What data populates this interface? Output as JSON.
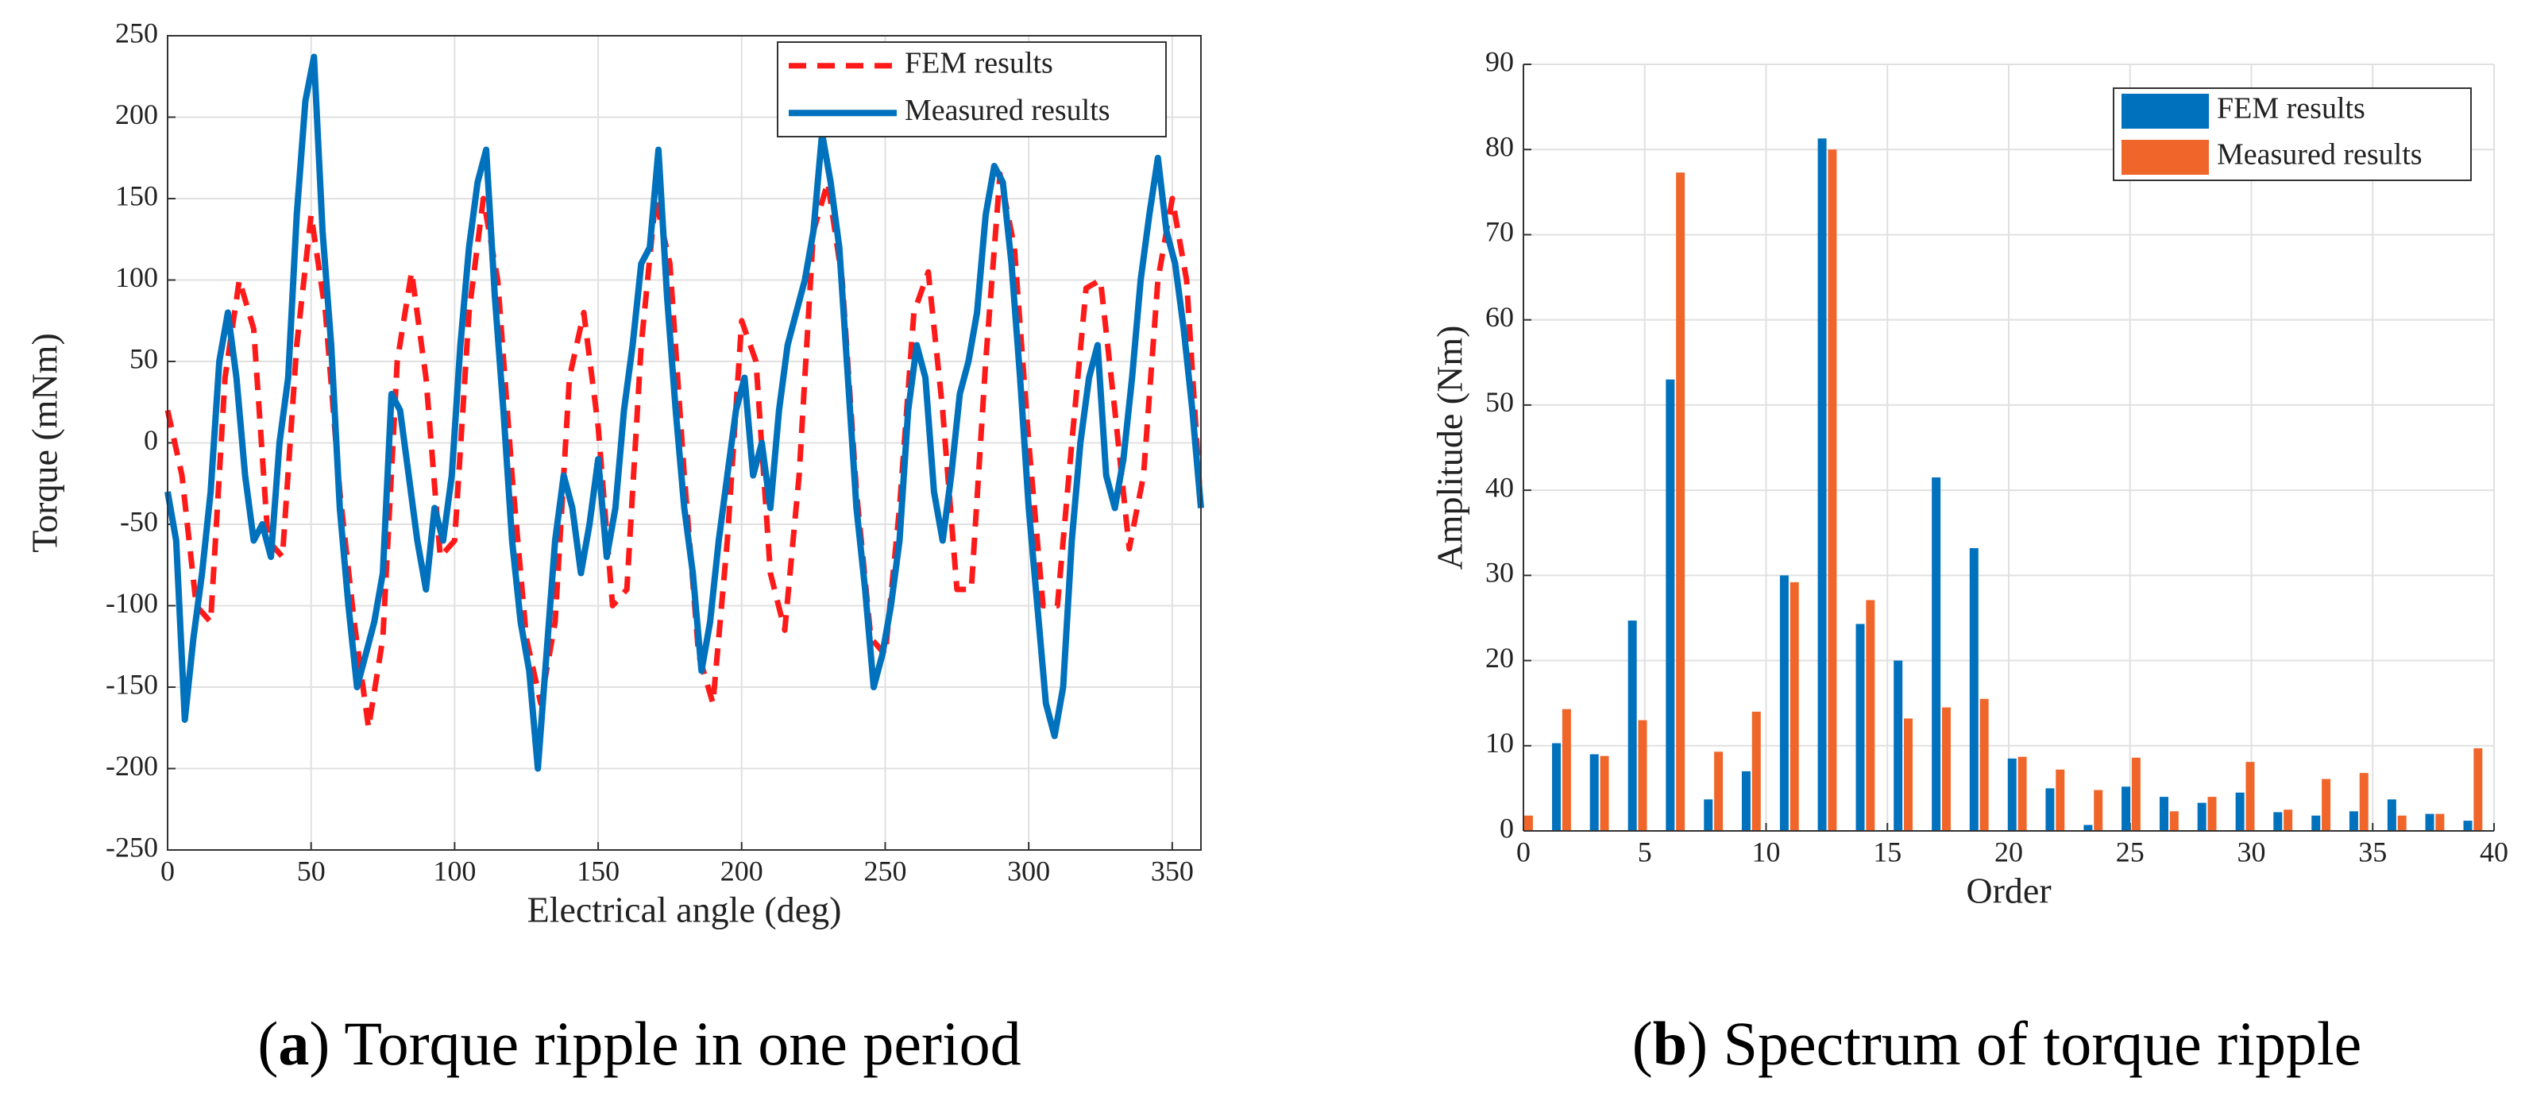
{
  "chart_data": [
    {
      "type": "line",
      "xlabel": "Electrical angle (deg)",
      "ylabel": "Torque (mNm)",
      "caption": [
        "(",
        "a",
        ") Torque ripple in one period"
      ],
      "xlim": [
        0,
        360
      ],
      "xticks": [
        0,
        50,
        100,
        150,
        200,
        250,
        300,
        350
      ],
      "ylim": [
        -250,
        250
      ],
      "yticks": [
        -250,
        -200,
        -150,
        -100,
        -50,
        0,
        50,
        100,
        150,
        200,
        250
      ],
      "grid": true,
      "legend": "upper right",
      "series": [
        {
          "name": "FEM results",
          "color": "#ff1a1a",
          "linestyle": "dashed",
          "x": [
            0,
            5,
            10,
            15,
            20,
            25,
            30,
            35,
            40,
            45,
            50,
            55,
            60,
            65,
            70,
            75,
            80,
            85,
            90,
            95,
            100,
            105,
            110,
            115,
            120,
            125,
            130,
            135,
            140,
            145,
            150,
            155,
            160,
            165,
            170,
            175,
            180,
            185,
            190,
            195,
            200,
            205,
            210,
            215,
            220,
            225,
            230,
            235,
            240,
            245,
            250,
            255,
            260,
            265,
            270,
            275,
            280,
            285,
            290,
            295,
            300,
            305,
            310,
            315,
            320,
            325,
            330,
            335,
            340,
            345,
            350,
            355,
            360
          ],
          "values": [
            20,
            -20,
            -100,
            -110,
            40,
            100,
            70,
            -60,
            -70,
            60,
            140,
            80,
            -30,
            -110,
            -175,
            -120,
            50,
            105,
            40,
            -70,
            -60,
            80,
            150,
            100,
            -20,
            -120,
            -160,
            -110,
            40,
            80,
            10,
            -100,
            -90,
            60,
            150,
            110,
            -20,
            -130,
            -160,
            -60,
            75,
            50,
            -80,
            -115,
            -20,
            130,
            160,
            100,
            -30,
            -120,
            -130,
            -40,
            80,
            105,
            20,
            -90,
            -90,
            50,
            165,
            120,
            0,
            -100,
            -100,
            0,
            95,
            100,
            20,
            -65,
            -20,
            100,
            150,
            100,
            -40
          ]
        },
        {
          "name": "Measured results",
          "color": "#0072bd",
          "linestyle": "solid",
          "x": [
            0,
            3,
            6,
            9,
            12,
            15,
            18,
            21,
            24,
            27,
            30,
            33,
            36,
            39,
            42,
            45,
            48,
            51,
            54,
            57,
            60,
            63,
            66,
            69,
            72,
            75,
            78,
            81,
            84,
            87,
            90,
            93,
            96,
            99,
            102,
            105,
            108,
            111,
            114,
            117,
            120,
            123,
            126,
            129,
            132,
            135,
            138,
            141,
            144,
            147,
            150,
            153,
            156,
            159,
            162,
            165,
            168,
            171,
            174,
            177,
            180,
            183,
            186,
            189,
            192,
            195,
            198,
            201,
            204,
            207,
            210,
            213,
            216,
            219,
            222,
            225,
            228,
            231,
            234,
            237,
            240,
            243,
            246,
            249,
            252,
            255,
            258,
            261,
            264,
            267,
            270,
            273,
            276,
            279,
            282,
            285,
            288,
            291,
            294,
            297,
            300,
            303,
            306,
            309,
            312,
            315,
            318,
            321,
            324,
            327,
            330,
            333,
            336,
            339,
            342,
            345,
            348,
            351,
            354,
            357,
            360
          ],
          "values": [
            -30,
            -60,
            -170,
            -120,
            -80,
            -30,
            50,
            80,
            40,
            -20,
            -60,
            -50,
            -70,
            0,
            40,
            140,
            210,
            237,
            130,
            60,
            -40,
            -100,
            -150,
            -130,
            -110,
            -80,
            30,
            20,
            -20,
            -60,
            -90,
            -40,
            -60,
            -20,
            60,
            120,
            160,
            180,
            90,
            20,
            -60,
            -110,
            -140,
            -200,
            -130,
            -60,
            -20,
            -40,
            -80,
            -50,
            -10,
            -70,
            -40,
            20,
            60,
            110,
            120,
            180,
            90,
            20,
            -40,
            -80,
            -140,
            -110,
            -60,
            -20,
            20,
            40,
            -20,
            0,
            -40,
            20,
            60,
            80,
            100,
            130,
            190,
            160,
            120,
            40,
            -40,
            -90,
            -150,
            -130,
            -100,
            -60,
            20,
            60,
            40,
            -30,
            -60,
            -20,
            30,
            50,
            80,
            140,
            170,
            160,
            110,
            40,
            -40,
            -100,
            -160,
            -180,
            -150,
            -60,
            0,
            40,
            60,
            -20,
            -40,
            -10,
            40,
            100,
            140,
            175,
            130,
            110,
            70,
            20,
            -40
          ]
        }
      ]
    },
    {
      "type": "bar",
      "xlabel": "Order",
      "ylabel": "Amplitude (Nm)",
      "caption": [
        "(",
        "b",
        ") Spectrum of torque ripple"
      ],
      "xlim": [
        0,
        40
      ],
      "xticks": [
        0,
        5,
        10,
        15,
        20,
        25,
        30,
        35,
        40
      ],
      "ylim": [
        0,
        90
      ],
      "yticks": [
        0,
        10,
        20,
        30,
        40,
        50,
        60,
        70,
        80,
        90
      ],
      "grid": true,
      "legend": "upper right",
      "x": [
        0,
        1.57,
        3.13,
        4.7,
        6.26,
        7.83,
        9.39,
        10.96,
        12.52,
        14.09,
        15.65,
        17.22,
        18.78,
        20.35,
        21.91,
        23.48,
        25.04,
        26.61,
        28.17,
        29.74,
        31.3,
        32.87,
        34.43,
        36,
        37.56,
        39.13
      ],
      "series": [
        {
          "name": "FEM results",
          "color": "#0072bd",
          "values": [
            0,
            10.3,
            9,
            24.7,
            53,
            3.7,
            7,
            30,
            81.3,
            24.3,
            20,
            41.5,
            33.2,
            8.5,
            5,
            0.7,
            5.2,
            4,
            3.3,
            4.5,
            2.2,
            1.8,
            2.3,
            3.7,
            2,
            1.2
          ]
        },
        {
          "name": "Measured results",
          "color": "#f0662a",
          "values": [
            1.8,
            14.3,
            8.8,
            13,
            77.3,
            9.3,
            14,
            29.2,
            80,
            27.1,
            13.2,
            14.5,
            15.5,
            8.7,
            7.2,
            4.8,
            8.6,
            2.3,
            4,
            8.1,
            2.5,
            6.1,
            6.8,
            1.8,
            2,
            9.7
          ]
        }
      ]
    }
  ]
}
